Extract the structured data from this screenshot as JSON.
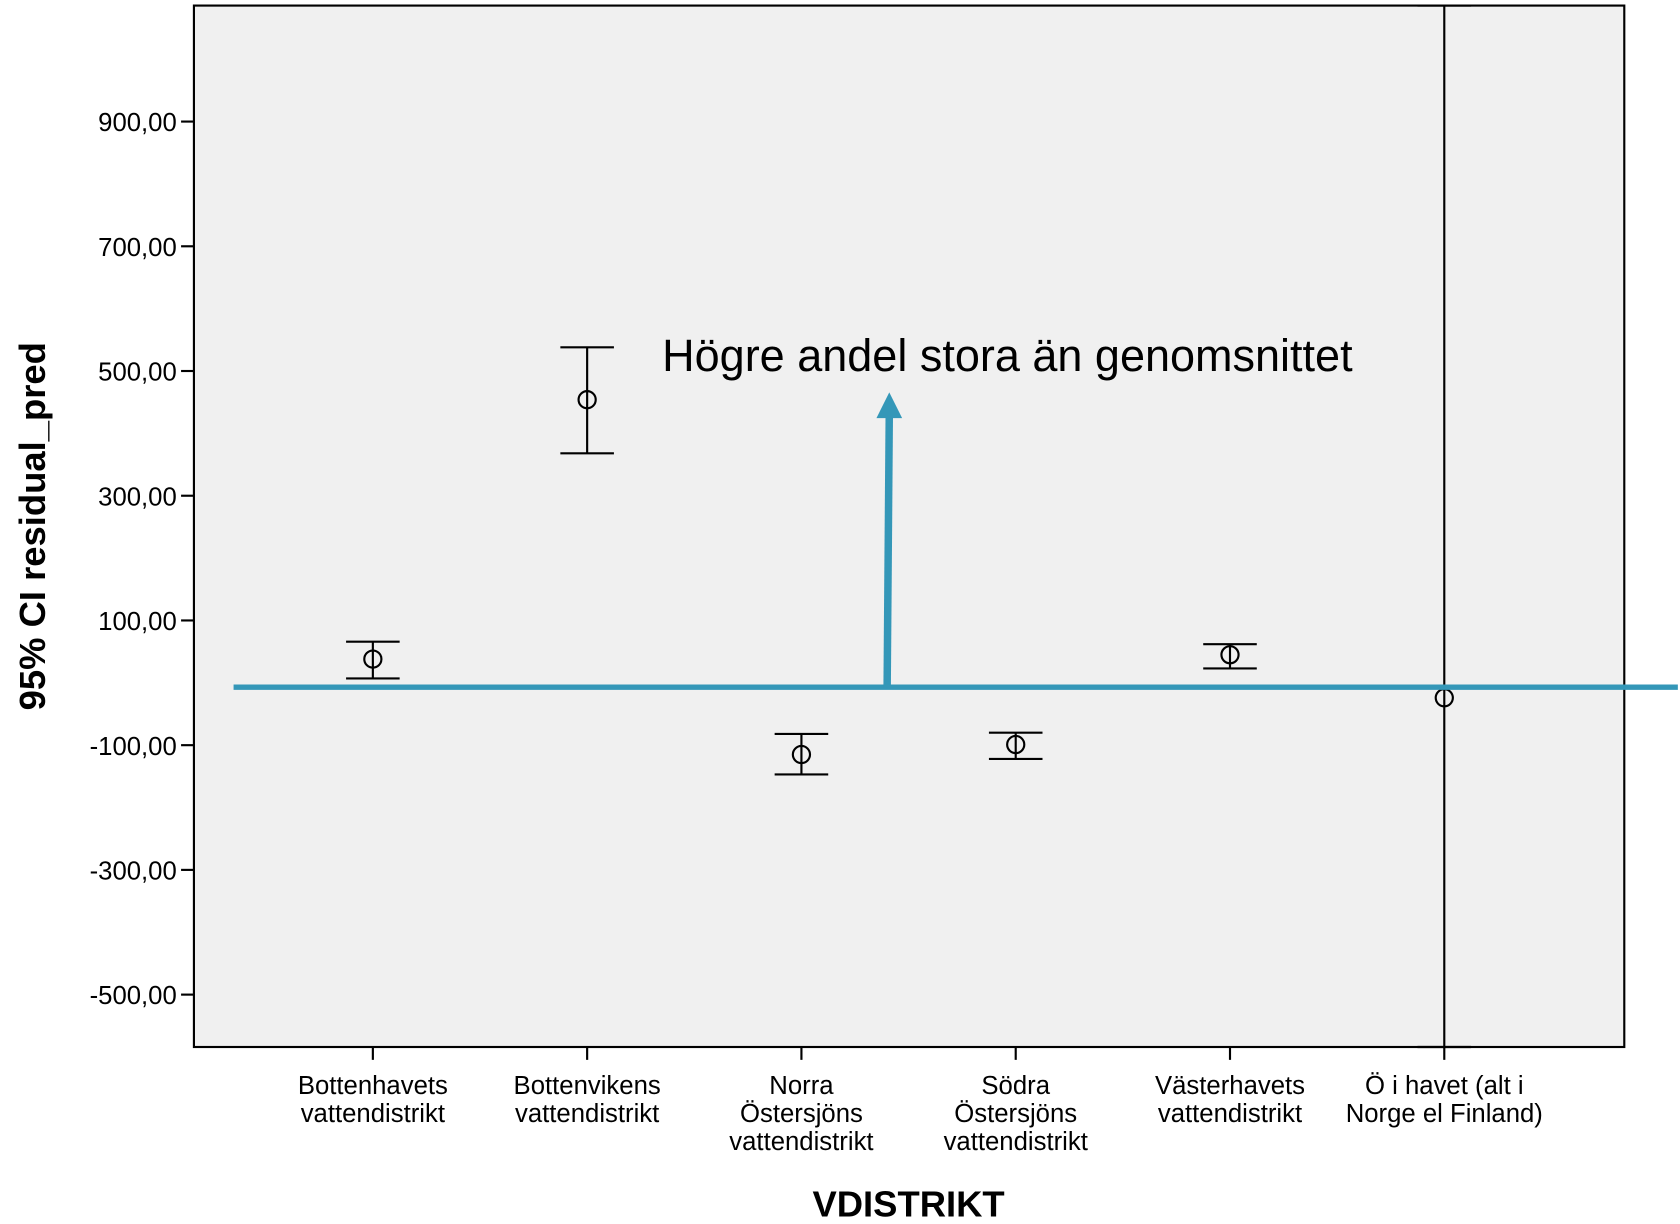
{
  "chart_data": {
    "type": "errorbar",
    "x_label": "VDISTRIKT",
    "y_label": "95% CI residual_pred",
    "categories": [
      "Bottenhavets\nvattendistrikt",
      "Bottenvikens\nvattendistrikt",
      "Norra\nÖstersjöns\nvattendistrikt",
      "Södra\nÖstersjöns\nvattendistrikt",
      "Västerhavets\nvattendistrikt",
      "Ö i havet (alt i\nNorge el Finland)"
    ],
    "values": [
      38,
      454,
      -115,
      -99,
      45,
      -24
    ],
    "lower": [
      7,
      368,
      -147,
      -122,
      23,
      -584
    ],
    "upper": [
      66,
      538,
      -82,
      -80,
      62,
      1086
    ],
    "color": "#000000",
    "ylim": [
      -584,
      1086
    ],
    "yticks": [
      {
        "value": -500,
        "label": "-500,00"
      },
      {
        "value": -300,
        "label": "-300,00"
      },
      {
        "value": -100,
        "label": "-100,00"
      },
      {
        "value": 100,
        "label": "100,00"
      },
      {
        "value": 300,
        "label": "300,00"
      },
      {
        "value": 500,
        "label": "500,00"
      },
      {
        "value": 700,
        "label": "700,00"
      },
      {
        "value": 900,
        "label": "900,00"
      }
    ],
    "reference_line": {
      "value": -7,
      "color": "#3497b8"
    },
    "annotation": "Högre andel stora än genomsnittet"
  }
}
